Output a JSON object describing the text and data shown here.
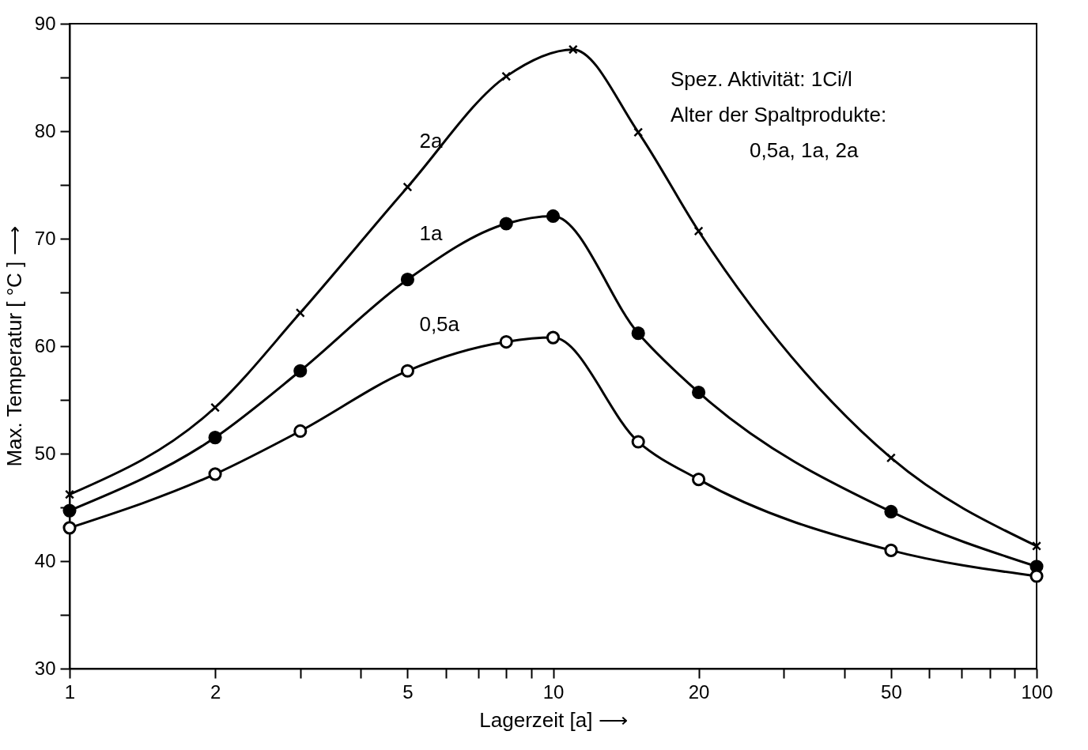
{
  "chart_data": {
    "type": "line",
    "xlabel": "Lagerzeit [a] ⟶",
    "ylabel": "Max. Temperatur [ °C ] ⟶",
    "log": "x",
    "grid": false,
    "line_style": "solid",
    "xlim": [
      1,
      100
    ],
    "ylim": [
      30,
      90
    ],
    "xticks": [
      1,
      2,
      {
        "value": 3,
        "label": null
      },
      {
        "value": 4,
        "label": null
      },
      5,
      {
        "value": 6,
        "label": null
      },
      {
        "value": 7,
        "label": null
      },
      {
        "value": 8,
        "label": null
      },
      {
        "value": 9,
        "label": null
      },
      10,
      20,
      {
        "value": 30,
        "label": null
      },
      {
        "value": 40,
        "label": null
      },
      50,
      {
        "value": 60,
        "label": null
      },
      {
        "value": 70,
        "label": null
      },
      {
        "value": 80,
        "label": null
      },
      {
        "value": 90,
        "label": null
      },
      100
    ],
    "yticks": [
      30,
      {
        "value": 35,
        "label": null
      },
      40,
      {
        "value": 45,
        "label": null
      },
      50,
      {
        "value": 55,
        "label": null
      },
      60,
      {
        "value": 65,
        "label": null
      },
      70,
      {
        "value": 75,
        "label": null
      },
      80,
      {
        "value": 85,
        "label": null
      },
      90
    ],
    "series": [
      {
        "name": "2a",
        "color": "#000000",
        "marker": "cross",
        "x": [
          1,
          2,
          3,
          5,
          8,
          11,
          15,
          20,
          50,
          100
        ],
        "values": [
          46.2,
          54.3,
          63.1,
          74.8,
          85.1,
          87.6,
          79.9,
          70.7,
          49.6,
          41.4
        ]
      },
      {
        "name": "1a",
        "color": "#000000",
        "marker": "circle",
        "x": [
          1,
          2,
          3,
          5,
          8,
          10,
          15,
          20,
          50,
          100
        ],
        "values": [
          44.7,
          51.5,
          57.7,
          66.2,
          71.4,
          72.1,
          61.2,
          55.7,
          44.6,
          39.5
        ]
      },
      {
        "name": "0,5a",
        "color": "#000000",
        "marker": "circle",
        "x": [
          1,
          2,
          3,
          5,
          8,
          10,
          15,
          20,
          50,
          100
        ],
        "values": [
          43.1,
          48.1,
          52.1,
          57.7,
          60.4,
          60.8,
          51.1,
          47.6,
          41.0,
          38.6
        ]
      }
    ],
    "annotations": [
      "Spez. Aktivität: 1Ci/l",
      "Alter der Spaltprodukte:",
      "0,5a, 1a, 2a"
    ]
  }
}
